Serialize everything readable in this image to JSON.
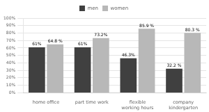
{
  "chart_data": {
    "type": "bar",
    "categories": [
      "home office",
      "part time work",
      "flexible\nworking hours",
      "company\nkindergarten"
    ],
    "series": [
      {
        "name": "men",
        "color": "#404040",
        "values": [
          61,
          61,
          46.3,
          32.2
        ],
        "value_labels": [
          "61%",
          "61%",
          "46.3%",
          "32.2 %"
        ]
      },
      {
        "name": "women",
        "color": "#b8b8b8",
        "values": [
          64.8,
          73.2,
          85.9,
          80.3
        ],
        "value_labels": [
          "64.8 %",
          "73.2%",
          "85.9 %",
          "80.3 %"
        ]
      }
    ],
    "ylim": [
      0,
      100
    ],
    "yticks": [
      {
        "value": 0,
        "label": "0%"
      },
      {
        "value": 10,
        "label": "10%"
      },
      {
        "value": 20,
        "label": "20%"
      },
      {
        "value": 30,
        "label": "30%"
      },
      {
        "value": 40,
        "label": "40%"
      },
      {
        "value": 50,
        "label": "50%"
      },
      {
        "value": 60,
        "label": "60%"
      },
      {
        "value": 70,
        "label": "70%"
      },
      {
        "value": 80,
        "label": "80%"
      },
      {
        "value": 90,
        "label": "90%"
      },
      {
        "value": 100,
        "label": "100%"
      }
    ],
    "grid": true,
    "legend": "top",
    "data_labels": true
  }
}
